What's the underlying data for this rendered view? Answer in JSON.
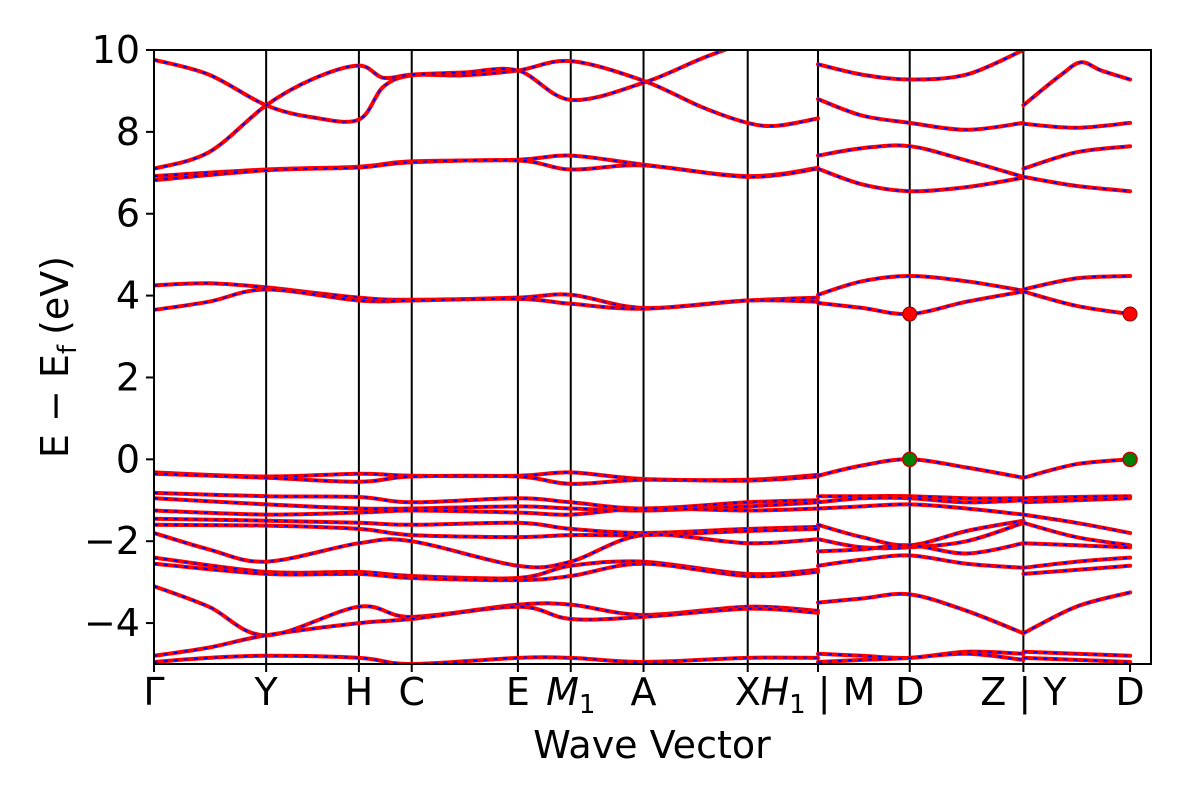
{
  "chart_data": {
    "type": "line",
    "title": "",
    "xlabel": "Wave Vector",
    "ylabel": "E − E",
    "ylabel_sub": "f",
    "ylabel_unit": "(eV)",
    "ylim": [
      -5,
      10
    ],
    "yticks": [
      {
        "value": 10,
        "label": "10"
      },
      {
        "value": 8,
        "label": "8"
      },
      {
        "value": 6,
        "label": "6"
      },
      {
        "value": 4,
        "label": "4"
      },
      {
        "value": 2,
        "label": "2"
      },
      {
        "value": 0,
        "label": "0"
      },
      {
        "value": -2,
        "label": "−2"
      },
      {
        "value": -4,
        "label": "−4"
      }
    ],
    "xlim": [
      0,
      20
    ],
    "kpoints": [
      {
        "x": 0,
        "label": "Γ"
      },
      {
        "x": 2.25,
        "label": "Y"
      },
      {
        "x": 4.11,
        "label": "H"
      },
      {
        "x": 5.17,
        "label": "C"
      },
      {
        "x": 7.3,
        "label": "E"
      },
      {
        "x": 8.36,
        "label": "M",
        "sub": "1"
      },
      {
        "x": 9.82,
        "label": "A"
      },
      {
        "x": 11.91,
        "label": "X"
      },
      {
        "x": 13.32,
        "label": "H",
        "sub": "1",
        "suffix": " | M"
      },
      {
        "x": 15.16,
        "label": "D"
      },
      {
        "x": 17.44,
        "label": "Z | Y"
      },
      {
        "x": 19.58,
        "label": "D"
      }
    ],
    "vlines": [
      2.25,
      4.11,
      5.17,
      7.3,
      8.36,
      9.82,
      11.91,
      13.32,
      15.16,
      17.44
    ],
    "vbm": [
      {
        "x": 15.16,
        "y": 0.0
      },
      {
        "x": 19.58,
        "y": 0.0
      }
    ],
    "cbm": [
      {
        "x": 15.16,
        "y": 3.55
      },
      {
        "x": 19.58,
        "y": 3.55
      }
    ],
    "style": {
      "band_color": "#ff0000",
      "band_overlay_color": "#0000ff",
      "vbm_color": "#008000",
      "cbm_color": "#ff0000"
    },
    "series": [
      {
        "x": [
          0,
          1.1,
          2.25,
          3.2,
          4.11,
          4.6,
          5.17,
          6.2,
          7.3,
          8.36,
          9.82,
          11.0,
          11.91,
          12.5,
          13.32
        ],
        "y": [
          9.76,
          9.4,
          8.65,
          8.35,
          8.3,
          9.1,
          9.38,
          9.38,
          9.5,
          9.73,
          9.25,
          8.6,
          8.22,
          8.15,
          8.33
        ]
      },
      {
        "x": [
          0,
          1.1,
          2.25,
          3.2,
          4.11,
          4.6,
          5.17,
          6.2,
          7.3,
          8.36,
          9.82,
          11.0,
          11.91
        ],
        "y": [
          7.1,
          7.5,
          8.65,
          9.3,
          9.62,
          9.32,
          9.4,
          9.45,
          9.5,
          8.78,
          9.2,
          9.8,
          10.2
        ]
      },
      {
        "x": [
          0,
          2.25,
          4.11,
          5.17,
          7.3,
          8.36,
          9.82,
          11.91,
          13.32
        ],
        "y": [
          6.92,
          7.08,
          7.15,
          7.28,
          7.32,
          7.42,
          7.2,
          6.92,
          7.12
        ]
      },
      {
        "x": [
          0,
          2.25,
          4.11,
          5.17,
          7.3,
          8.36,
          9.82,
          11.91,
          13.32
        ],
        "y": [
          6.82,
          7.06,
          7.13,
          7.26,
          7.3,
          7.08,
          7.18,
          6.9,
          7.1
        ]
      },
      {
        "x": [
          0,
          1.1,
          2.25,
          4.11,
          5.17,
          7.3,
          8.36,
          9.82,
          11.91,
          13.32
        ],
        "y": [
          4.25,
          4.3,
          4.2,
          3.95,
          3.9,
          3.95,
          4.02,
          3.7,
          3.88,
          3.95
        ]
      },
      {
        "x": [
          0,
          1.1,
          2.25,
          4.11,
          5.17,
          7.3,
          8.36,
          9.82,
          11.91,
          13.32
        ],
        "y": [
          3.65,
          3.85,
          4.15,
          3.88,
          3.88,
          3.92,
          3.8,
          3.68,
          3.88,
          3.85
        ]
      },
      {
        "x": [
          0,
          2.25,
          4.11,
          5.17,
          7.3,
          8.36,
          9.82,
          11.91,
          13.32
        ],
        "y": [
          -0.32,
          -0.42,
          -0.35,
          -0.4,
          -0.4,
          -0.32,
          -0.48,
          -0.5,
          -0.38
        ]
      },
      {
        "x": [
          0,
          2.25,
          4.11,
          5.17,
          7.3,
          8.36,
          9.82,
          11.91,
          13.32
        ],
        "y": [
          -0.35,
          -0.45,
          -0.55,
          -0.42,
          -0.42,
          -0.6,
          -0.5,
          -0.52,
          -0.42
        ]
      },
      {
        "x": [
          0,
          2.25,
          4.11,
          5.17,
          7.3,
          8.36,
          9.82,
          11.91,
          13.32
        ],
        "y": [
          -0.82,
          -0.9,
          -0.92,
          -1.05,
          -0.95,
          -1.05,
          -1.2,
          -1.05,
          -1.0
        ]
      },
      {
        "x": [
          0,
          2.25,
          4.11,
          5.17,
          7.3,
          8.36,
          9.82,
          11.91,
          13.32
        ],
        "y": [
          -0.95,
          -1.1,
          -1.2,
          -1.2,
          -1.15,
          -1.2,
          -1.25,
          -1.15,
          -1.05
        ]
      },
      {
        "x": [
          0,
          2.25,
          4.11,
          5.17,
          7.3,
          8.36,
          9.82,
          11.91,
          13.32
        ],
        "y": [
          -1.25,
          -1.35,
          -1.3,
          -1.25,
          -1.3,
          -1.35,
          -1.2,
          -1.25,
          -1.2
        ]
      },
      {
        "x": [
          0,
          2.25,
          4.11,
          5.17,
          7.3,
          8.36,
          9.82,
          11.91,
          13.32
        ],
        "y": [
          -1.45,
          -1.5,
          -1.55,
          -1.6,
          -1.55,
          -1.7,
          -1.8,
          -1.7,
          -1.65
        ]
      },
      {
        "x": [
          0,
          2.25,
          4.11,
          5.17,
          7.3,
          8.36,
          9.82,
          11.91,
          13.32
        ],
        "y": [
          -1.6,
          -1.62,
          -1.7,
          -1.85,
          -1.9,
          -1.85,
          -1.85,
          -1.75,
          -1.7
        ]
      },
      {
        "x": [
          0,
          1.1,
          2.25,
          4.11,
          5.17,
          7.3,
          8.36,
          9.82,
          11.91,
          13.32
        ],
        "y": [
          -1.8,
          -2.2,
          -2.5,
          -2.05,
          -2.0,
          -2.6,
          -2.5,
          -1.85,
          -2.05,
          -1.95
        ]
      },
      {
        "x": [
          0,
          2.25,
          4.11,
          5.17,
          7.3,
          8.36,
          9.82,
          11.91,
          13.32
        ],
        "y": [
          -2.4,
          -2.75,
          -2.75,
          -2.85,
          -2.9,
          -2.6,
          -2.5,
          -2.8,
          -2.7
        ]
      },
      {
        "x": [
          0,
          2.25,
          4.11,
          5.17,
          7.3,
          8.36,
          9.82,
          11.91,
          13.32
        ],
        "y": [
          -2.55,
          -2.8,
          -2.8,
          -2.9,
          -2.95,
          -2.85,
          -2.55,
          -2.85,
          -2.75
        ]
      },
      {
        "x": [
          0,
          1.1,
          2.25,
          4.11,
          5.17,
          7.3,
          8.36,
          9.82,
          11.91,
          13.32
        ],
        "y": [
          -3.1,
          -3.6,
          -4.3,
          -3.6,
          -3.85,
          -3.55,
          -3.55,
          -3.8,
          -3.6,
          -3.7
        ]
      },
      {
        "x": [
          0,
          1.1,
          2.25,
          4.11,
          5.17,
          7.3,
          8.36,
          9.82,
          11.91,
          13.32
        ],
        "y": [
          -4.8,
          -4.6,
          -4.3,
          -4.0,
          -3.9,
          -3.6,
          -3.9,
          -3.85,
          -3.65,
          -3.75
        ]
      },
      {
        "x": [
          0,
          1.1,
          2.25,
          4.11,
          5.17,
          7.3,
          8.36,
          9.82,
          11.91,
          13.32
        ],
        "y": [
          -4.95,
          -4.85,
          -4.8,
          -4.85,
          -5.0,
          -4.85,
          -4.85,
          -4.95,
          -4.85,
          -4.85
        ]
      },
      {
        "x": [
          13.32,
          14.2,
          15.16,
          16.3,
          17.44
        ],
        "y": [
          9.65,
          9.4,
          9.28,
          9.4,
          10.0
        ]
      },
      {
        "x": [
          13.32,
          14.2,
          15.16,
          16.3,
          17.44
        ],
        "y": [
          8.8,
          8.4,
          8.22,
          8.05,
          8.22
        ]
      },
      {
        "x": [
          13.32,
          14.2,
          15.16,
          16.3,
          17.44
        ],
        "y": [
          7.42,
          7.6,
          7.65,
          7.3,
          6.9
        ]
      },
      {
        "x": [
          13.32,
          14.2,
          15.16,
          16.3,
          17.44
        ],
        "y": [
          7.1,
          6.72,
          6.55,
          6.65,
          6.88
        ]
      },
      {
        "x": [
          13.32,
          14.2,
          15.16,
          16.3,
          17.44
        ],
        "y": [
          4.02,
          4.35,
          4.48,
          4.35,
          4.12
        ]
      },
      {
        "x": [
          13.32,
          14.2,
          15.16,
          16.3,
          17.44
        ],
        "y": [
          3.82,
          3.7,
          3.55,
          3.85,
          4.1
        ]
      },
      {
        "x": [
          13.32,
          14.2,
          15.16,
          16.3,
          17.44
        ],
        "y": [
          -0.4,
          -0.15,
          0.0,
          -0.2,
          -0.45
        ]
      },
      {
        "x": [
          13.32,
          14.2,
          15.16,
          16.3,
          17.44
        ],
        "y": [
          -0.9,
          -0.9,
          -0.9,
          -0.95,
          -0.95
        ]
      },
      {
        "x": [
          13.32,
          14.2,
          15.16,
          16.3,
          17.44
        ],
        "y": [
          -1.05,
          -0.95,
          -0.95,
          -1.05,
          -1.0
        ]
      },
      {
        "x": [
          13.32,
          14.2,
          15.16,
          16.3,
          17.44
        ],
        "y": [
          -1.2,
          -1.15,
          -1.1,
          -1.2,
          -1.35
        ]
      },
      {
        "x": [
          13.32,
          14.2,
          15.16,
          16.3,
          17.44
        ],
        "y": [
          -1.6,
          -1.9,
          -2.1,
          -1.75,
          -1.5
        ]
      },
      {
        "x": [
          13.32,
          14.2,
          15.16,
          16.3,
          17.44
        ],
        "y": [
          -1.95,
          -2.15,
          -2.15,
          -2.0,
          -1.55
        ]
      },
      {
        "x": [
          13.32,
          14.2,
          15.16,
          16.3,
          17.44
        ],
        "y": [
          -2.25,
          -2.2,
          -2.1,
          -2.3,
          -2.05
        ]
      },
      {
        "x": [
          13.32,
          14.2,
          15.16,
          16.3,
          17.44
        ],
        "y": [
          -2.6,
          -2.45,
          -2.35,
          -2.55,
          -2.65
        ]
      },
      {
        "x": [
          13.32,
          14.2,
          15.16,
          16.3,
          17.44
        ],
        "y": [
          -3.5,
          -3.4,
          -3.3,
          -3.7,
          -4.25
        ]
      },
      {
        "x": [
          13.32,
          14.2,
          15.16,
          16.3,
          17.44
        ],
        "y": [
          -4.75,
          -4.8,
          -4.85,
          -4.7,
          -4.75
        ]
      },
      {
        "x": [
          13.32,
          14.2,
          15.16,
          16.3,
          17.44
        ],
        "y": [
          -4.95,
          -4.9,
          -4.85,
          -4.75,
          -4.9
        ]
      },
      {
        "x": [
          17.44,
          18.2,
          18.6,
          19.0,
          19.58
        ],
        "y": [
          8.65,
          9.4,
          9.7,
          9.5,
          9.28
        ]
      },
      {
        "x": [
          17.44,
          18.5,
          19.58
        ],
        "y": [
          8.2,
          8.1,
          8.22
        ]
      },
      {
        "x": [
          17.44,
          18.5,
          19.58
        ],
        "y": [
          7.1,
          7.5,
          7.65
        ]
      },
      {
        "x": [
          17.44,
          18.5,
          19.58
        ],
        "y": [
          6.9,
          6.68,
          6.55
        ]
      },
      {
        "x": [
          17.44,
          18.5,
          19.58
        ],
        "y": [
          4.15,
          4.42,
          4.48
        ]
      },
      {
        "x": [
          17.44,
          18.5,
          19.58
        ],
        "y": [
          4.1,
          3.75,
          3.55
        ]
      },
      {
        "x": [
          17.44,
          18.5,
          19.58
        ],
        "y": [
          -0.45,
          -0.12,
          0.0
        ]
      },
      {
        "x": [
          17.44,
          18.5,
          19.58
        ],
        "y": [
          -0.95,
          -0.92,
          -0.9
        ]
      },
      {
        "x": [
          17.44,
          18.5,
          19.58
        ],
        "y": [
          -1.05,
          -1.0,
          -0.95
        ]
      },
      {
        "x": [
          17.44,
          18.5,
          19.58
        ],
        "y": [
          -1.35,
          -1.55,
          -1.8
        ]
      },
      {
        "x": [
          17.44,
          18.5,
          19.58
        ],
        "y": [
          -1.55,
          -1.9,
          -2.1
        ]
      },
      {
        "x": [
          17.44,
          18.5,
          19.58
        ],
        "y": [
          -2.05,
          -2.1,
          -2.15
        ]
      },
      {
        "x": [
          17.44,
          18.5,
          19.58
        ],
        "y": [
          -2.65,
          -2.5,
          -2.4
        ]
      },
      {
        "x": [
          17.44,
          18.5,
          19.58
        ],
        "y": [
          -2.8,
          -2.7,
          -2.6
        ]
      },
      {
        "x": [
          17.44,
          18.5,
          19.58
        ],
        "y": [
          -4.25,
          -3.6,
          -3.25
        ]
      },
      {
        "x": [
          17.44,
          18.5,
          19.58
        ],
        "y": [
          -4.7,
          -4.75,
          -4.8
        ]
      },
      {
        "x": [
          17.44,
          18.5,
          19.58
        ],
        "y": [
          -4.85,
          -4.9,
          -4.95
        ]
      }
    ]
  }
}
